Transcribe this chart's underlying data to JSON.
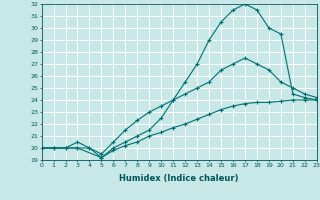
{
  "xlabel": "Humidex (Indice chaleur)",
  "bg_color": "#c8e8e8",
  "grid_color": "#ffffff",
  "line_color": "#007070",
  "line1_x": [
    0,
    1,
    2,
    3,
    4,
    5,
    6,
    7,
    8,
    9,
    10,
    11,
    12,
    13,
    14,
    15,
    16,
    17,
    18,
    19,
    20,
    21,
    22,
    23
  ],
  "line1_y": [
    20,
    20,
    20,
    20,
    20,
    19.2,
    19.8,
    20.2,
    20.5,
    21.0,
    21.3,
    21.7,
    22.0,
    22.4,
    22.8,
    23.2,
    23.5,
    23.7,
    23.8,
    23.8,
    23.9,
    24.0,
    24.0,
    24.0
  ],
  "line2_x": [
    0,
    1,
    2,
    3,
    4,
    5,
    6,
    7,
    8,
    9,
    10,
    11,
    12,
    13,
    14,
    15,
    16,
    17,
    18,
    19,
    20,
    21,
    22,
    23
  ],
  "line2_y": [
    20,
    20,
    20,
    20.5,
    20,
    19.5,
    20.5,
    21.5,
    22.3,
    23.0,
    23.5,
    24.0,
    24.5,
    25.0,
    25.5,
    26.5,
    27.0,
    27.5,
    27.0,
    26.5,
    25.5,
    25.0,
    24.5,
    24.2
  ],
  "line3_x": [
    0,
    3,
    5,
    6,
    7,
    8,
    9,
    10,
    11,
    12,
    13,
    14,
    15,
    16,
    17,
    18,
    19,
    20,
    21,
    22,
    23
  ],
  "line3_y": [
    20,
    20,
    19.2,
    20.0,
    20.5,
    21.0,
    21.5,
    22.5,
    24.0,
    25.5,
    27.0,
    29.0,
    30.5,
    31.5,
    32.0,
    31.5,
    30.0,
    29.5,
    24.5,
    24.2,
    24.0
  ],
  "xlim": [
    0,
    23
  ],
  "ylim": [
    19,
    32
  ],
  "yticks": [
    19,
    20,
    21,
    22,
    23,
    24,
    25,
    26,
    27,
    28,
    29,
    30,
    31,
    32
  ],
  "xticks": [
    0,
    1,
    2,
    3,
    4,
    5,
    6,
    7,
    8,
    9,
    10,
    11,
    12,
    13,
    14,
    15,
    16,
    17,
    18,
    19,
    20,
    21,
    22,
    23
  ]
}
